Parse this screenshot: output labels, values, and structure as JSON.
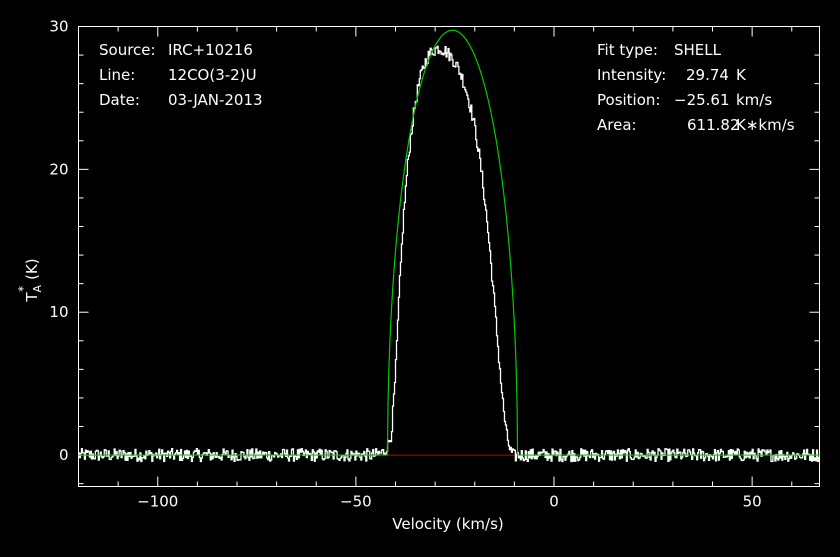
{
  "info_left": {
    "source_label": "Source:",
    "source_value": "IRC+10216",
    "line_label": "Line:",
    "line_value": "12CO(3-2)U",
    "date_label": "Date:",
    "date_value": "03-JAN-2013"
  },
  "info_right": {
    "fit_label": "Fit type:",
    "fit_value": "SHELL",
    "intensity_label": "Intensity:",
    "intensity_value": "29.74",
    "intensity_unit": "K",
    "position_label": "Position:",
    "position_value": "−25.61",
    "position_unit": "km/s",
    "area_label": "Area:",
    "area_value": "611.82",
    "area_unit": "K∗km/s"
  },
  "chart_data": {
    "type": "line",
    "xlabel": "Velocity (km/s)",
    "ylabel_main": "T",
    "ylabel_sub": "A",
    "ylabel_sup": "*",
    "ylabel_unit": "(K)",
    "xlim": [
      -120,
      67
    ],
    "ylim": [
      -2.2,
      30
    ],
    "x_ticks": [
      -100,
      -50,
      0,
      50
    ],
    "x_tick_labels": [
      "−100",
      "−50",
      "0",
      "50"
    ],
    "y_ticks": [
      0,
      10,
      20,
      30
    ],
    "y_tick_labels": [
      "0",
      "10",
      "20",
      "30"
    ],
    "colors": {
      "data": "#ffffff",
      "fit": "#00cc00",
      "baseline": "#cc0000",
      "axes": "#ffffff"
    },
    "fit": {
      "shape": "shell",
      "intensity": 29.74,
      "center": -25.61,
      "half_width": 16.4,
      "horn": 0.0
    },
    "baseline": {
      "x": [
        -42,
        -10
      ],
      "y": 0
    },
    "series": [
      {
        "kind": "spectrum",
        "x": [
          -120,
          -110,
          -100,
          -90,
          -80,
          -70,
          -60,
          -50,
          -45,
          -43,
          -42,
          -41,
          -40,
          -39,
          -38,
          -37,
          -36,
          -35,
          -34,
          -33,
          -32,
          -31,
          -30,
          -29,
          -28,
          -27,
          -26,
          -25,
          -24,
          -23,
          -22,
          -21,
          -20,
          -19,
          -18,
          -17,
          -16,
          -15,
          -14,
          -13,
          -12,
          -11,
          -10,
          -9,
          -5,
          0,
          10,
          20,
          30,
          40,
          50,
          60,
          67
        ],
        "y": [
          0.0,
          0.0,
          0.0,
          0.0,
          0.0,
          0.0,
          0.0,
          0.0,
          0.0,
          0.2,
          0.6,
          1.5,
          5.5,
          11.5,
          16.5,
          20.0,
          22.6,
          24.6,
          26.1,
          27.1,
          27.8,
          28.2,
          28.4,
          28.5,
          28.4,
          28.2,
          27.9,
          27.5,
          27.0,
          26.3,
          25.4,
          24.3,
          23.0,
          21.3,
          19.2,
          16.7,
          13.8,
          10.6,
          7.2,
          4.0,
          1.5,
          0.3,
          -0.1,
          0.0,
          0.0,
          0.0,
          0.0,
          0.0,
          0.0,
          0.0,
          0.0,
          0.0,
          0.0
        ]
      }
    ]
  }
}
